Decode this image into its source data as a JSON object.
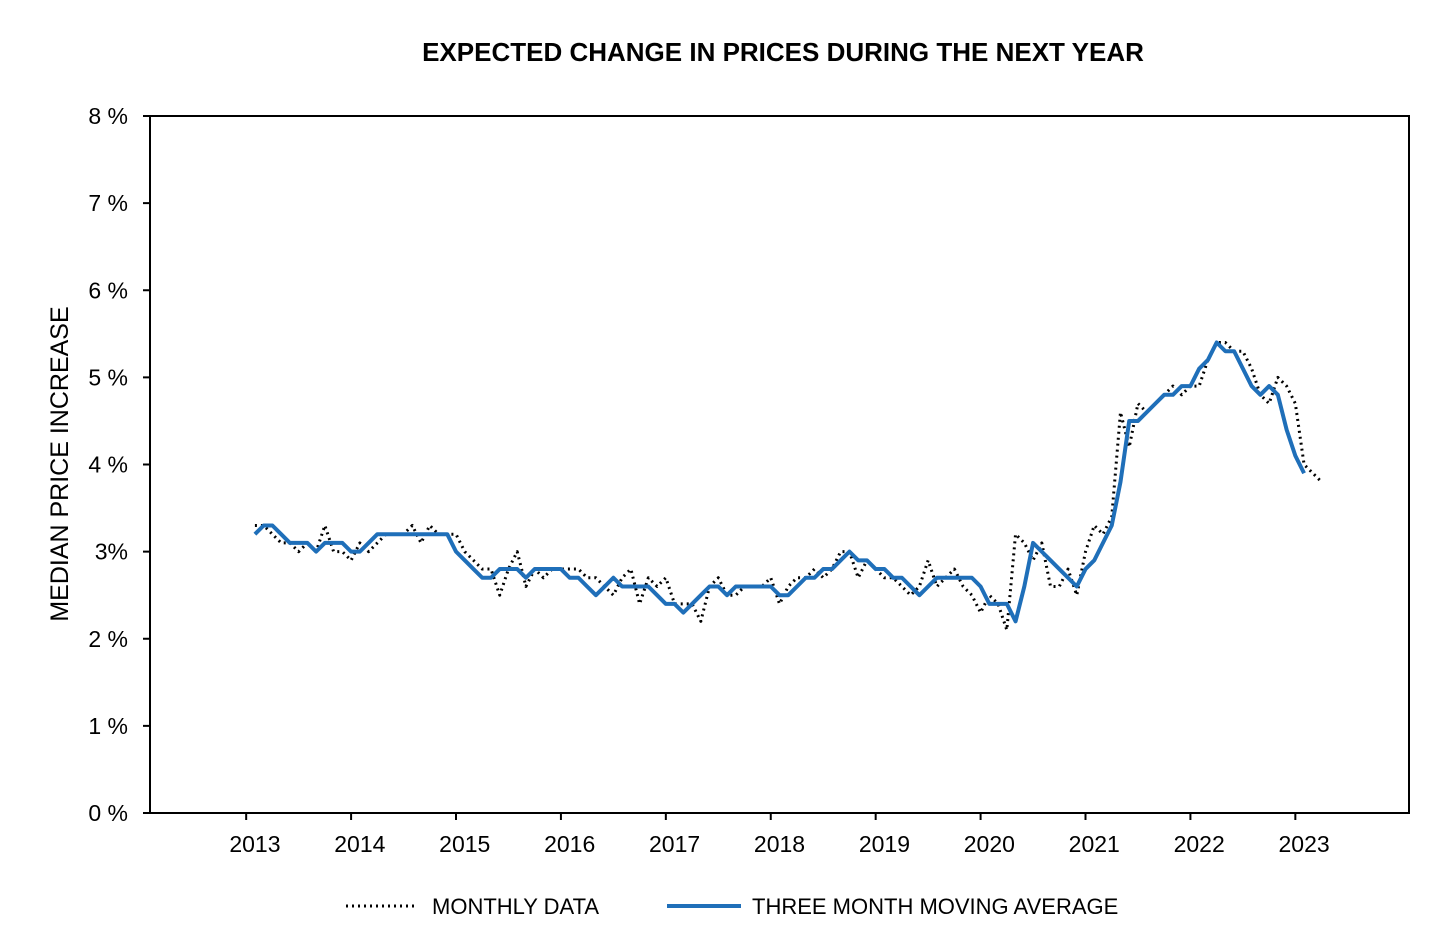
{
  "chart_data": {
    "type": "line",
    "title": "EXPECTED CHANGE IN PRICES DURING THE NEXT YEAR",
    "xlabel": "",
    "ylabel": "MEDIAN PRICE INCREASE",
    "ylim": [
      0,
      8
    ],
    "xlim": [
      "2012-01",
      "2024-01"
    ],
    "y_ticks": [
      "0 %",
      "1 %",
      "2 %",
      "3%",
      "4 %",
      "5 %",
      "6 %",
      "7 %",
      "8 %"
    ],
    "x_ticks": [
      "2013",
      "2014",
      "2015",
      "2016",
      "2017",
      "2018",
      "2019",
      "2020",
      "2021",
      "2022",
      "2023"
    ],
    "grid": false,
    "legend_position": "bottom",
    "colors": {
      "monthly": "#000000",
      "moving_average": "#1f6fb9"
    },
    "series": [
      {
        "name": "MONTHLY DATA",
        "style": "dotted",
        "x_start": "2013-01",
        "frequency": "monthly",
        "values": [
          3.3,
          3.3,
          3.2,
          3.1,
          3.1,
          3.0,
          3.1,
          3.0,
          3.3,
          3.0,
          3.0,
          2.9,
          3.1,
          3.0,
          3.1,
          3.2,
          3.2,
          3.2,
          3.3,
          3.1,
          3.3,
          3.2,
          3.2,
          3.2,
          3.0,
          2.9,
          2.8,
          2.8,
          2.5,
          2.8,
          3.0,
          2.6,
          2.8,
          2.7,
          2.8,
          2.8,
          2.8,
          2.8,
          2.7,
          2.7,
          2.6,
          2.5,
          2.7,
          2.8,
          2.4,
          2.7,
          2.6,
          2.7,
          2.4,
          2.4,
          2.4,
          2.2,
          2.6,
          2.7,
          2.5,
          2.5,
          2.6,
          2.6,
          2.6,
          2.7,
          2.4,
          2.6,
          2.7,
          2.7,
          2.8,
          2.7,
          2.8,
          3.0,
          3.0,
          2.7,
          2.9,
          2.8,
          2.7,
          2.7,
          2.6,
          2.5,
          2.6,
          2.9,
          2.6,
          2.7,
          2.8,
          2.6,
          2.5,
          2.3,
          2.5,
          2.4,
          2.1,
          3.2,
          3.1,
          2.9,
          3.1,
          2.6,
          2.6,
          2.8,
          2.5,
          3.0,
          3.3,
          3.2,
          3.4,
          4.6,
          4.2,
          4.7,
          4.6,
          4.7,
          4.8,
          4.9,
          4.8,
          4.9,
          4.9,
          5.2,
          5.4,
          5.4,
          5.3,
          5.3,
          5.1,
          4.8,
          4.7,
          5.0,
          4.9,
          4.7,
          4.0,
          3.9,
          3.8
        ]
      },
      {
        "name": "THREE MONTH MOVING AVERAGE",
        "style": "solid",
        "x_start": "2013-01",
        "frequency": "monthly",
        "values": [
          3.2,
          3.3,
          3.3,
          3.2,
          3.1,
          3.1,
          3.1,
          3.0,
          3.1,
          3.1,
          3.1,
          3.0,
          3.0,
          3.1,
          3.2,
          3.2,
          3.2,
          3.2,
          3.2,
          3.2,
          3.2,
          3.2,
          3.2,
          3.0,
          2.9,
          2.8,
          2.7,
          2.7,
          2.8,
          2.8,
          2.8,
          2.7,
          2.8,
          2.8,
          2.8,
          2.8,
          2.7,
          2.7,
          2.6,
          2.5,
          2.6,
          2.7,
          2.6,
          2.6,
          2.6,
          2.6,
          2.5,
          2.4,
          2.4,
          2.3,
          2.4,
          2.5,
          2.6,
          2.6,
          2.5,
          2.6,
          2.6,
          2.6,
          2.6,
          2.6,
          2.5,
          2.5,
          2.6,
          2.7,
          2.7,
          2.8,
          2.8,
          2.9,
          3.0,
          2.9,
          2.9,
          2.8,
          2.8,
          2.7,
          2.7,
          2.6,
          2.5,
          2.6,
          2.7,
          2.7,
          2.7,
          2.7,
          2.7,
          2.6,
          2.4,
          2.4,
          2.4,
          2.2,
          2.6,
          3.1,
          3.0,
          2.9,
          2.8,
          2.7,
          2.6,
          2.8,
          2.9,
          3.1,
          3.3,
          3.8,
          4.5,
          4.5,
          4.6,
          4.7,
          4.8,
          4.8,
          4.9,
          4.9,
          5.1,
          5.2,
          5.4,
          5.3,
          5.3,
          5.1,
          4.9,
          4.8,
          4.9,
          4.8,
          4.4,
          4.1,
          3.9
        ]
      }
    ]
  }
}
